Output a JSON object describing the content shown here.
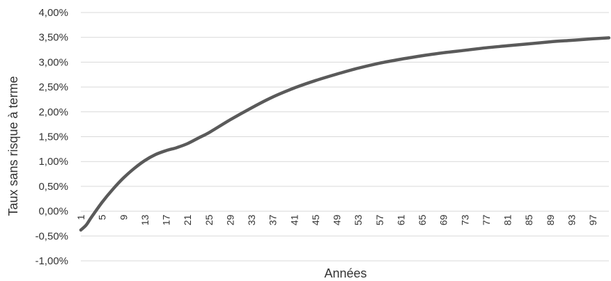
{
  "chart_data": {
    "type": "line",
    "xlabel": "Années",
    "ylabel": "Taux sans risque à terme",
    "ylim": [
      -1.0,
      4.0
    ],
    "y_ticks": [
      {
        "value": -1.0,
        "label": "-1,00%"
      },
      {
        "value": -0.5,
        "label": "-0,50%"
      },
      {
        "value": 0.0,
        "label": "0,00%"
      },
      {
        "value": 0.5,
        "label": "0,50%"
      },
      {
        "value": 1.0,
        "label": "1,00%"
      },
      {
        "value": 1.5,
        "label": "1,50%"
      },
      {
        "value": 2.0,
        "label": "2,00%"
      },
      {
        "value": 2.5,
        "label": "2,50%"
      },
      {
        "value": 3.0,
        "label": "3,00%"
      },
      {
        "value": 3.5,
        "label": "3,50%"
      },
      {
        "value": 4.0,
        "label": "4,00%"
      }
    ],
    "x_range": [
      1,
      100
    ],
    "x_ticks": [
      "1",
      "5",
      "9",
      "13",
      "17",
      "21",
      "25",
      "29",
      "33",
      "37",
      "41",
      "45",
      "49",
      "53",
      "57",
      "61",
      "65",
      "69",
      "73",
      "77",
      "81",
      "85",
      "89",
      "93",
      "97"
    ],
    "grid": true,
    "legend": "none",
    "line_color": "#5a5a5a",
    "series": [
      {
        "x": [
          1,
          2,
          3,
          5,
          7,
          9,
          11,
          13,
          15,
          17,
          19,
          21,
          23,
          25,
          29,
          33,
          37,
          41,
          45,
          49,
          53,
          57,
          61,
          65,
          69,
          73,
          77,
          81,
          85,
          89,
          93,
          97,
          100
        ],
        "values": [
          -0.38,
          -0.28,
          -0.12,
          0.18,
          0.44,
          0.67,
          0.86,
          1.02,
          1.14,
          1.22,
          1.28,
          1.36,
          1.47,
          1.58,
          1.84,
          2.08,
          2.3,
          2.48,
          2.63,
          2.76,
          2.88,
          2.98,
          3.06,
          3.13,
          3.19,
          3.24,
          3.29,
          3.33,
          3.37,
          3.41,
          3.44,
          3.47,
          3.49
        ]
      }
    ]
  }
}
